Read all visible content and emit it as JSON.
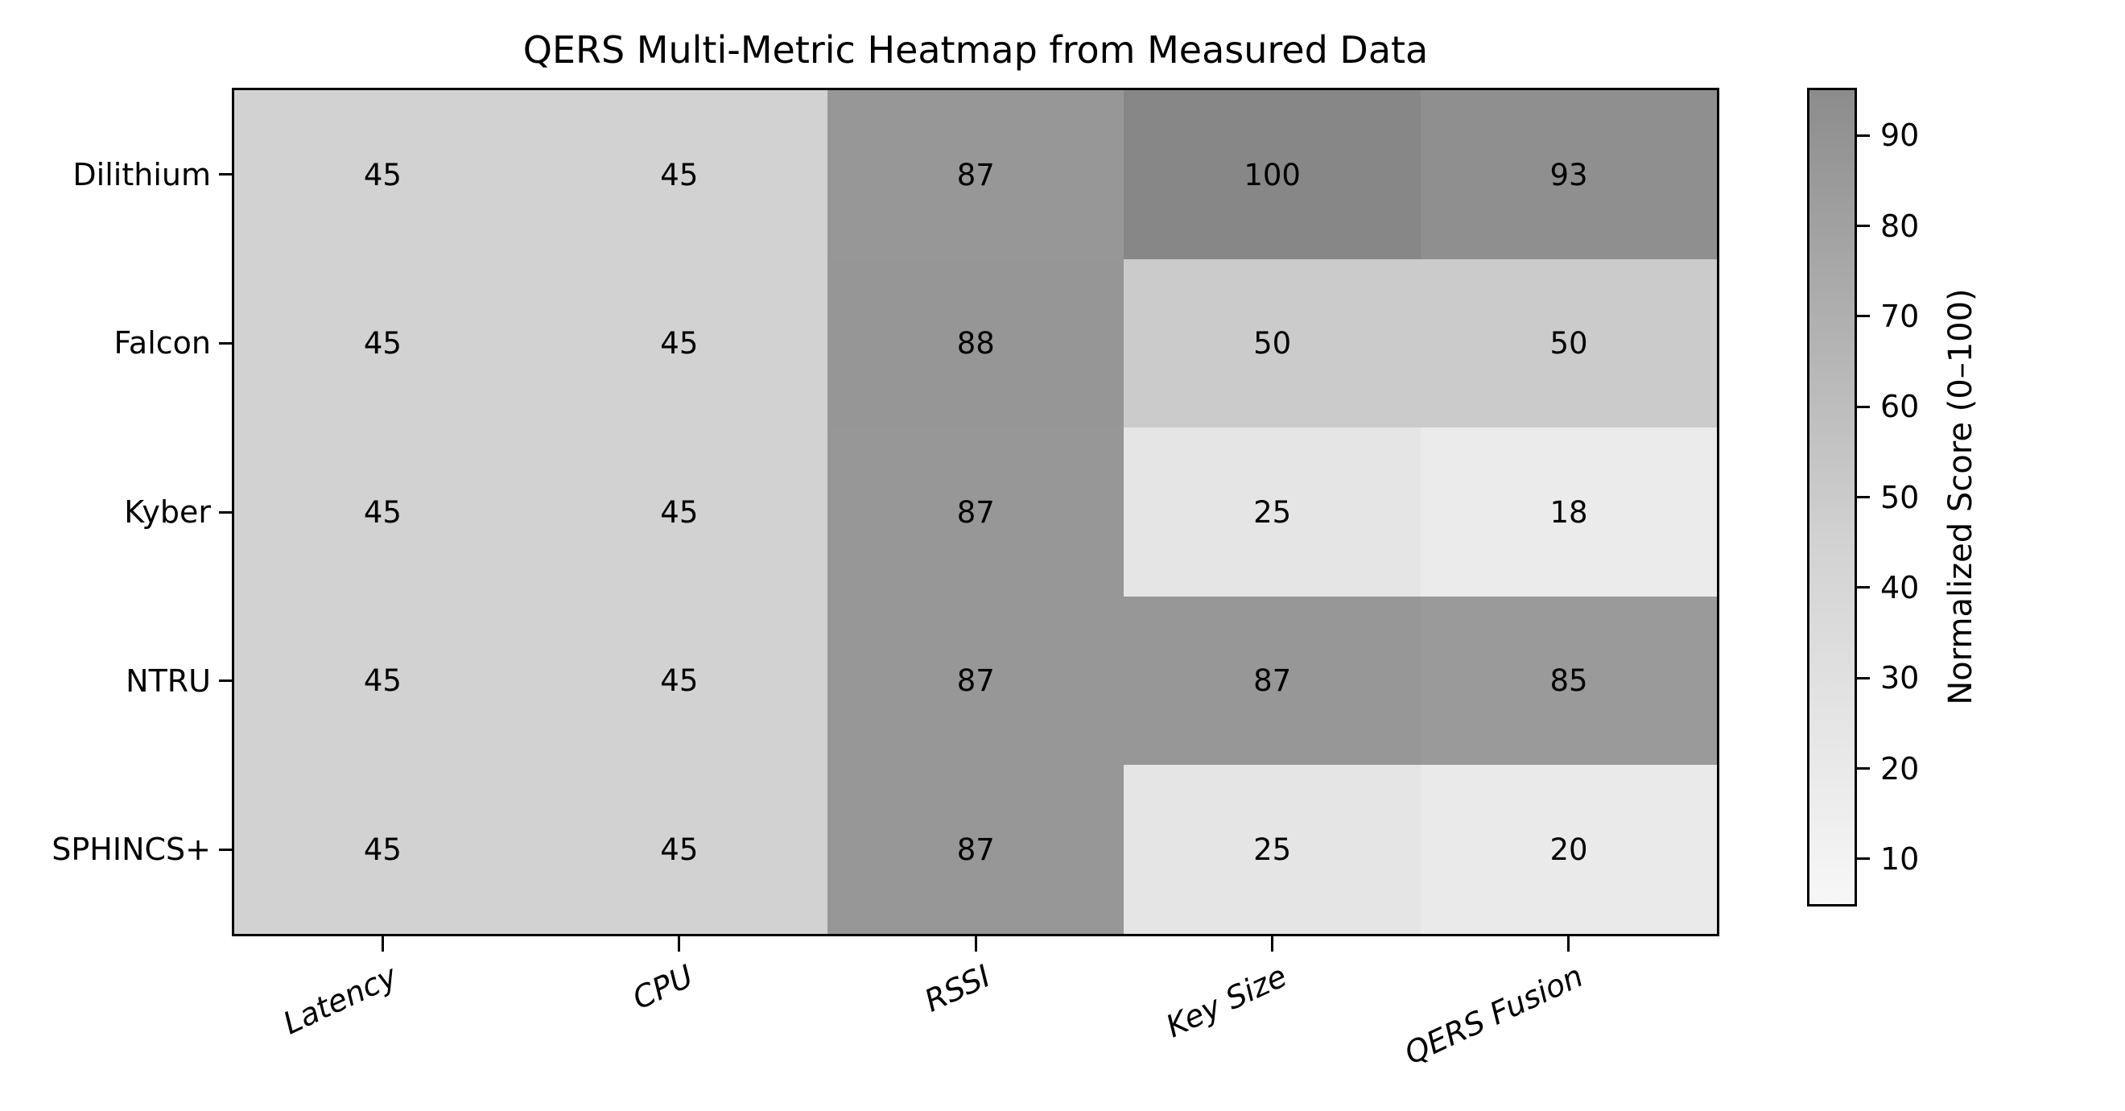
{
  "chart_data": {
    "type": "heatmap",
    "title": "QERS Multi-Metric Heatmap from Measured Data",
    "rows": [
      "Dilithium",
      "Falcon",
      "Kyber",
      "NTRU",
      "SPHINCS+"
    ],
    "columns": [
      "Latency",
      "CPU",
      "RSSI",
      "Key Size",
      "QERS Fusion"
    ],
    "values": [
      [
        45,
        45,
        87,
        100,
        93
      ],
      [
        45,
        45,
        88,
        50,
        50
      ],
      [
        45,
        45,
        87,
        25,
        18
      ],
      [
        45,
        45,
        87,
        87,
        85
      ],
      [
        45,
        45,
        87,
        25,
        20
      ]
    ],
    "colorbar": {
      "label": "Normalized Score (0–100)",
      "ticks": [
        90,
        80,
        70,
        60,
        50,
        40,
        30,
        20,
        10
      ],
      "vmin": 5,
      "vmax": 95
    },
    "colormap": {
      "name": "greys-dark-is-high",
      "stops": [
        [
          5,
          "#f7f7f7"
        ],
        [
          25,
          "#e5e5e5"
        ],
        [
          45,
          "#d2d2d2"
        ],
        [
          50,
          "#cbcbcb"
        ],
        [
          85,
          "#9a9a9a"
        ],
        [
          95,
          "#8c8c8c"
        ],
        [
          100,
          "#878787"
        ]
      ]
    },
    "style": {
      "background": "#ffffff",
      "border_color": "#000000",
      "cell_text_color": "#000000"
    },
    "grid": false,
    "legend_position": "none"
  }
}
